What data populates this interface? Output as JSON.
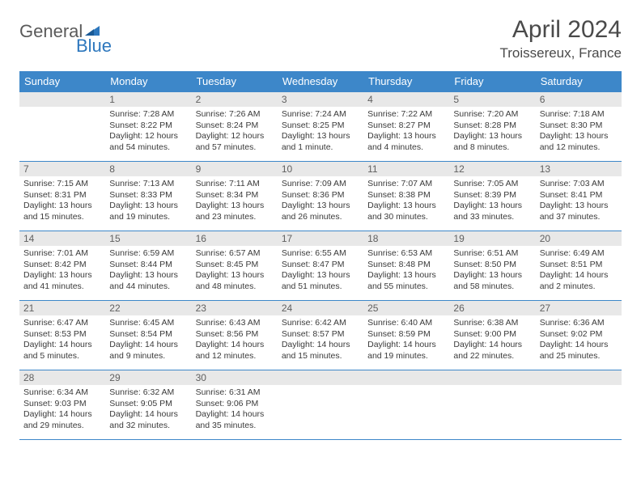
{
  "logo": {
    "word1": "General",
    "word2": "Blue"
  },
  "title": "April 2024",
  "location": "Troissereux, France",
  "colors": {
    "header_bg": "#3d87c9",
    "header_text": "#ffffff",
    "daynum_bg": "#e8e8e8",
    "daynum_text": "#606060",
    "body_text": "#3a3a3a",
    "border": "#3d87c9",
    "logo_gray": "#5a5a5a",
    "logo_blue": "#2d77bd"
  },
  "daynames": [
    "Sunday",
    "Monday",
    "Tuesday",
    "Wednesday",
    "Thursday",
    "Friday",
    "Saturday"
  ],
  "weeks": [
    [
      null,
      {
        "n": "1",
        "sr": "Sunrise: 7:28 AM",
        "ss": "Sunset: 8:22 PM",
        "d1": "Daylight: 12 hours",
        "d2": "and 54 minutes."
      },
      {
        "n": "2",
        "sr": "Sunrise: 7:26 AM",
        "ss": "Sunset: 8:24 PM",
        "d1": "Daylight: 12 hours",
        "d2": "and 57 minutes."
      },
      {
        "n": "3",
        "sr": "Sunrise: 7:24 AM",
        "ss": "Sunset: 8:25 PM",
        "d1": "Daylight: 13 hours",
        "d2": "and 1 minute."
      },
      {
        "n": "4",
        "sr": "Sunrise: 7:22 AM",
        "ss": "Sunset: 8:27 PM",
        "d1": "Daylight: 13 hours",
        "d2": "and 4 minutes."
      },
      {
        "n": "5",
        "sr": "Sunrise: 7:20 AM",
        "ss": "Sunset: 8:28 PM",
        "d1": "Daylight: 13 hours",
        "d2": "and 8 minutes."
      },
      {
        "n": "6",
        "sr": "Sunrise: 7:18 AM",
        "ss": "Sunset: 8:30 PM",
        "d1": "Daylight: 13 hours",
        "d2": "and 12 minutes."
      }
    ],
    [
      {
        "n": "7",
        "sr": "Sunrise: 7:15 AM",
        "ss": "Sunset: 8:31 PM",
        "d1": "Daylight: 13 hours",
        "d2": "and 15 minutes."
      },
      {
        "n": "8",
        "sr": "Sunrise: 7:13 AM",
        "ss": "Sunset: 8:33 PM",
        "d1": "Daylight: 13 hours",
        "d2": "and 19 minutes."
      },
      {
        "n": "9",
        "sr": "Sunrise: 7:11 AM",
        "ss": "Sunset: 8:34 PM",
        "d1": "Daylight: 13 hours",
        "d2": "and 23 minutes."
      },
      {
        "n": "10",
        "sr": "Sunrise: 7:09 AM",
        "ss": "Sunset: 8:36 PM",
        "d1": "Daylight: 13 hours",
        "d2": "and 26 minutes."
      },
      {
        "n": "11",
        "sr": "Sunrise: 7:07 AM",
        "ss": "Sunset: 8:38 PM",
        "d1": "Daylight: 13 hours",
        "d2": "and 30 minutes."
      },
      {
        "n": "12",
        "sr": "Sunrise: 7:05 AM",
        "ss": "Sunset: 8:39 PM",
        "d1": "Daylight: 13 hours",
        "d2": "and 33 minutes."
      },
      {
        "n": "13",
        "sr": "Sunrise: 7:03 AM",
        "ss": "Sunset: 8:41 PM",
        "d1": "Daylight: 13 hours",
        "d2": "and 37 minutes."
      }
    ],
    [
      {
        "n": "14",
        "sr": "Sunrise: 7:01 AM",
        "ss": "Sunset: 8:42 PM",
        "d1": "Daylight: 13 hours",
        "d2": "and 41 minutes."
      },
      {
        "n": "15",
        "sr": "Sunrise: 6:59 AM",
        "ss": "Sunset: 8:44 PM",
        "d1": "Daylight: 13 hours",
        "d2": "and 44 minutes."
      },
      {
        "n": "16",
        "sr": "Sunrise: 6:57 AM",
        "ss": "Sunset: 8:45 PM",
        "d1": "Daylight: 13 hours",
        "d2": "and 48 minutes."
      },
      {
        "n": "17",
        "sr": "Sunrise: 6:55 AM",
        "ss": "Sunset: 8:47 PM",
        "d1": "Daylight: 13 hours",
        "d2": "and 51 minutes."
      },
      {
        "n": "18",
        "sr": "Sunrise: 6:53 AM",
        "ss": "Sunset: 8:48 PM",
        "d1": "Daylight: 13 hours",
        "d2": "and 55 minutes."
      },
      {
        "n": "19",
        "sr": "Sunrise: 6:51 AM",
        "ss": "Sunset: 8:50 PM",
        "d1": "Daylight: 13 hours",
        "d2": "and 58 minutes."
      },
      {
        "n": "20",
        "sr": "Sunrise: 6:49 AM",
        "ss": "Sunset: 8:51 PM",
        "d1": "Daylight: 14 hours",
        "d2": "and 2 minutes."
      }
    ],
    [
      {
        "n": "21",
        "sr": "Sunrise: 6:47 AM",
        "ss": "Sunset: 8:53 PM",
        "d1": "Daylight: 14 hours",
        "d2": "and 5 minutes."
      },
      {
        "n": "22",
        "sr": "Sunrise: 6:45 AM",
        "ss": "Sunset: 8:54 PM",
        "d1": "Daylight: 14 hours",
        "d2": "and 9 minutes."
      },
      {
        "n": "23",
        "sr": "Sunrise: 6:43 AM",
        "ss": "Sunset: 8:56 PM",
        "d1": "Daylight: 14 hours",
        "d2": "and 12 minutes."
      },
      {
        "n": "24",
        "sr": "Sunrise: 6:42 AM",
        "ss": "Sunset: 8:57 PM",
        "d1": "Daylight: 14 hours",
        "d2": "and 15 minutes."
      },
      {
        "n": "25",
        "sr": "Sunrise: 6:40 AM",
        "ss": "Sunset: 8:59 PM",
        "d1": "Daylight: 14 hours",
        "d2": "and 19 minutes."
      },
      {
        "n": "26",
        "sr": "Sunrise: 6:38 AM",
        "ss": "Sunset: 9:00 PM",
        "d1": "Daylight: 14 hours",
        "d2": "and 22 minutes."
      },
      {
        "n": "27",
        "sr": "Sunrise: 6:36 AM",
        "ss": "Sunset: 9:02 PM",
        "d1": "Daylight: 14 hours",
        "d2": "and 25 minutes."
      }
    ],
    [
      {
        "n": "28",
        "sr": "Sunrise: 6:34 AM",
        "ss": "Sunset: 9:03 PM",
        "d1": "Daylight: 14 hours",
        "d2": "and 29 minutes."
      },
      {
        "n": "29",
        "sr": "Sunrise: 6:32 AM",
        "ss": "Sunset: 9:05 PM",
        "d1": "Daylight: 14 hours",
        "d2": "and 32 minutes."
      },
      {
        "n": "30",
        "sr": "Sunrise: 6:31 AM",
        "ss": "Sunset: 9:06 PM",
        "d1": "Daylight: 14 hours",
        "d2": "and 35 minutes."
      },
      null,
      null,
      null,
      null
    ]
  ]
}
